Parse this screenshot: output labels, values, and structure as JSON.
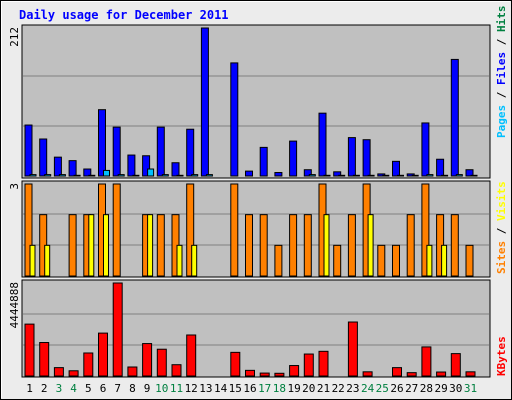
{
  "colors": {
    "frame_outer": "#ececec",
    "plot_bg": "#c0c0c0",
    "grid": "#808080",
    "title": "#0000ff",
    "pages": "#00c0ff",
    "files": "#0000ff",
    "hits": "#008040",
    "visits": "#ffff00",
    "sites": "#ff8000",
    "kbytes": "#ff0000",
    "weekend_day": "#008040",
    "weekday_day": "#000000"
  },
  "chart_data": {
    "type": "bar",
    "title": "Daily usage for December 2011",
    "categories": [
      "1",
      "2",
      "3",
      "4",
      "5",
      "6",
      "7",
      "8",
      "9",
      "10",
      "11",
      "12",
      "13",
      "14",
      "15",
      "16",
      "17",
      "18",
      "19",
      "20",
      "21",
      "22",
      "23",
      "24",
      "25",
      "26",
      "27",
      "28",
      "29",
      "30",
      "31"
    ],
    "weekend_days": [
      "3",
      "4",
      "10",
      "11",
      "17",
      "18",
      "24",
      "25",
      "31"
    ],
    "panels": [
      {
        "max_label": "212",
        "ylim": [
          0,
          212
        ],
        "legend": {
          "pages": "Pages",
          "sep1": " / ",
          "files": "Files",
          "sep2": " / ",
          "hits": "Hits"
        },
        "series": [
          {
            "name": "Hits",
            "values": [
              73,
              53,
              27,
              22,
              10,
              95,
              70,
              30,
              29,
              70,
              19,
              67,
              212,
              0,
              162,
              7,
              41,
              5,
              50,
              9,
              90,
              6,
              55,
              52,
              3,
              21,
              3,
              76,
              24,
              167,
              9
            ]
          },
          {
            "name": "Files",
            "values": [
              0,
              0,
              0,
              0,
              0,
              0,
              0,
              0,
              0,
              0,
              0,
              0,
              0,
              0,
              0,
              0,
              0,
              0,
              0,
              0,
              0,
              0,
              0,
              0,
              0,
              0,
              0,
              0,
              0,
              0,
              0
            ]
          },
          {
            "name": "Pages",
            "values": [
              2,
              2,
              2,
              1,
              1,
              8,
              2,
              1,
              10,
              2,
              1,
              2,
              2,
              0,
              0,
              0,
              0,
              0,
              0,
              2,
              1,
              1,
              1,
              1,
              1,
              1,
              1,
              2,
              1,
              2,
              1
            ]
          }
        ]
      },
      {
        "max_label": "3",
        "ylim": [
          0,
          3
        ],
        "legend": {
          "visits": "Visits",
          "sep": " / ",
          "sites": "Sites"
        },
        "series": [
          {
            "name": "Sites",
            "values": [
              3,
              2,
              0,
              2,
              2,
              3,
              3,
              0,
              2,
              2,
              2,
              3,
              0,
              0,
              3,
              2,
              2,
              1,
              2,
              2,
              3,
              1,
              2,
              3,
              1,
              1,
              2,
              3,
              2,
              2,
              1
            ]
          },
          {
            "name": "Visits",
            "values": [
              1,
              1,
              0,
              0,
              2,
              2,
              0,
              0,
              2,
              0,
              1,
              1,
              0,
              0,
              0,
              0,
              0,
              0,
              0,
              0,
              2,
              0,
              0,
              2,
              0,
              0,
              0,
              1,
              1,
              0,
              0
            ]
          }
        ]
      },
      {
        "max_label": "4444888",
        "ylim": [
          0,
          4444888
        ],
        "legend": {
          "kbytes": "KBytes"
        },
        "series": [
          {
            "name": "KBytes",
            "values": [
              2480000,
              1600000,
              400000,
              250000,
              1100000,
              2050000,
              4444888,
              430000,
              1550000,
              1280000,
              540000,
              1960000,
              0,
              0,
              1130000,
              270000,
              140000,
              130000,
              500000,
              1050000,
              1180000,
              0,
              2580000,
              200000,
              0,
              400000,
              160000,
              1390000,
              190000,
              1070000,
              200000
            ]
          }
        ]
      }
    ]
  }
}
